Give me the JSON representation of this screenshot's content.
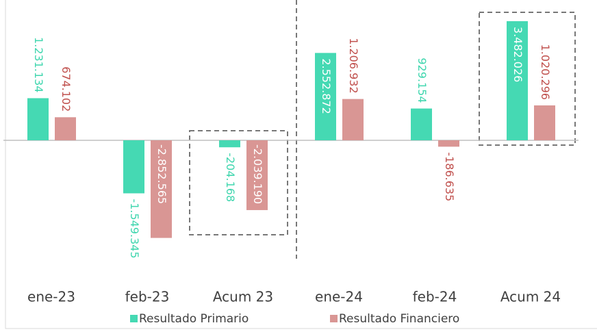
{
  "chart_data": {
    "type": "bar",
    "categories": [
      "ene-23",
      "feb-23",
      "Acum 23",
      "ene-24",
      "feb-24",
      "Acum 24"
    ],
    "series": [
      {
        "name": "Resultado Primario",
        "color": "#45d9b3",
        "label_color": "#3fd6ae",
        "values": [
          1231134,
          -1549345,
          -204168,
          2552872,
          929154,
          3482026
        ],
        "value_labels": [
          "1.231.134",
          "-1.549.345",
          "-204.168",
          "2.552.872",
          "929.154",
          "3.482.026"
        ]
      },
      {
        "name": "Resultado Financiero",
        "color": "#d99694",
        "label_color": "#c0504d",
        "values": [
          674102,
          -2852565,
          -2039190,
          1206932,
          -186635,
          1020296
        ],
        "value_labels": [
          "674.102",
          "-2.852.565",
          "-2.039.190",
          "1.206.932",
          "-186.635",
          "1.020.296"
        ]
      }
    ],
    "ylim": [
      -4200000,
      4100000
    ]
  }
}
